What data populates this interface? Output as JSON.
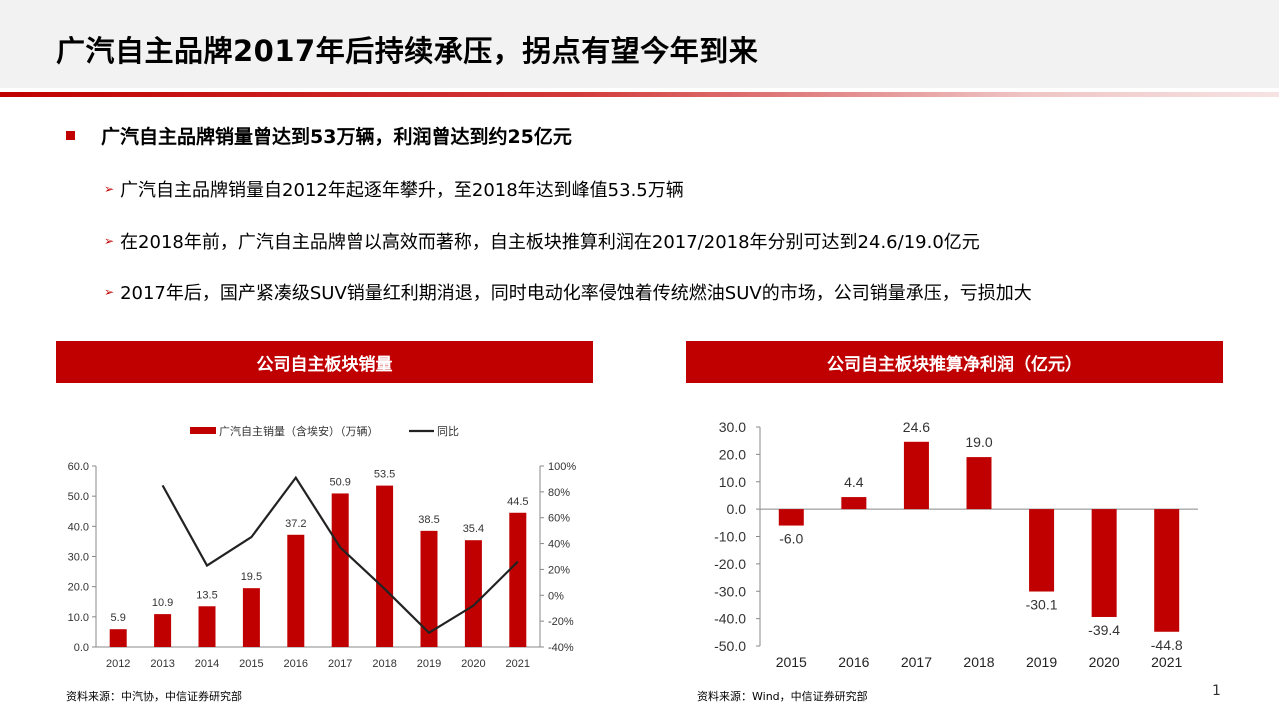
{
  "title": "广汽自主品牌2017年后持续承压，拐点有望今年到来",
  "bullet_main": "广汽自主品牌销量曾达到53万辆，利润曾达到约25亿元",
  "bullets": [
    "广汽自主品牌销量自2012年起逐年攀升，至2018年达到峰值53.5万辆",
    "在2018年前，广汽自主品牌曾以高效而著称，自主板块推算利润在2017/2018年分别可达到24.6/19.0亿元",
    "2017年后，国产紧凑级SUV销量红利期消退，同时电动化率侵蚀着传统燃油SUV的市场，公司销量承压，亏损加大"
  ],
  "left_panel_title": "公司自主板块销量",
  "right_panel_title": "公司自主板块推算净利润（亿元）",
  "left_source": "资料来源：中汽协，中信证券研究部",
  "right_source": "资料来源：Wind，中信证券研究部",
  "page_number": "1",
  "colors": {
    "accent": "#c00000",
    "line": "#222222"
  },
  "chart_data": [
    {
      "type": "bar",
      "categories": [
        "2012",
        "2013",
        "2014",
        "2015",
        "2016",
        "2017",
        "2018",
        "2019",
        "2020",
        "2021"
      ],
      "series": [
        {
          "name": "广汽自主销量（含埃安）（万辆）",
          "type": "bar",
          "axis": "left",
          "values": [
            5.9,
            10.9,
            13.5,
            19.5,
            37.2,
            50.9,
            53.5,
            38.5,
            35.4,
            44.5
          ],
          "labels": [
            "5.9",
            "10.9",
            "13.5",
            "19.5",
            "37.2",
            "50.9",
            "53.5",
            "38.5",
            "35.4",
            "44.5"
          ]
        },
        {
          "name": "同比",
          "type": "line",
          "axis": "right",
          "values": [
            null,
            85,
            23,
            45,
            91,
            37,
            5,
            -29,
            -8,
            26
          ]
        }
      ],
      "ylim": [
        0,
        60
      ],
      "yticks": [
        "0.0",
        "10.0",
        "20.0",
        "30.0",
        "40.0",
        "50.0",
        "60.0"
      ],
      "y2lim": [
        -40,
        100
      ],
      "y2ticks": [
        "-40%",
        "-20%",
        "0%",
        "20%",
        "40%",
        "60%",
        "80%",
        "100%"
      ],
      "legend": "top"
    },
    {
      "type": "bar",
      "categories": [
        "2015",
        "2016",
        "2017",
        "2018",
        "2019",
        "2020",
        "2021"
      ],
      "values": [
        -6.0,
        4.4,
        24.6,
        19.0,
        -30.1,
        -39.4,
        -44.8
      ],
      "labels": [
        "-6.0",
        "4.4",
        "24.6",
        "19.0",
        "-30.1",
        "-39.4",
        "-44.8"
      ],
      "ylim": [
        -50,
        30
      ],
      "yticks": [
        "-50.0",
        "-40.0",
        "-30.0",
        "-20.0",
        "-10.0",
        "0.0",
        "10.0",
        "20.0",
        "30.0"
      ]
    }
  ]
}
